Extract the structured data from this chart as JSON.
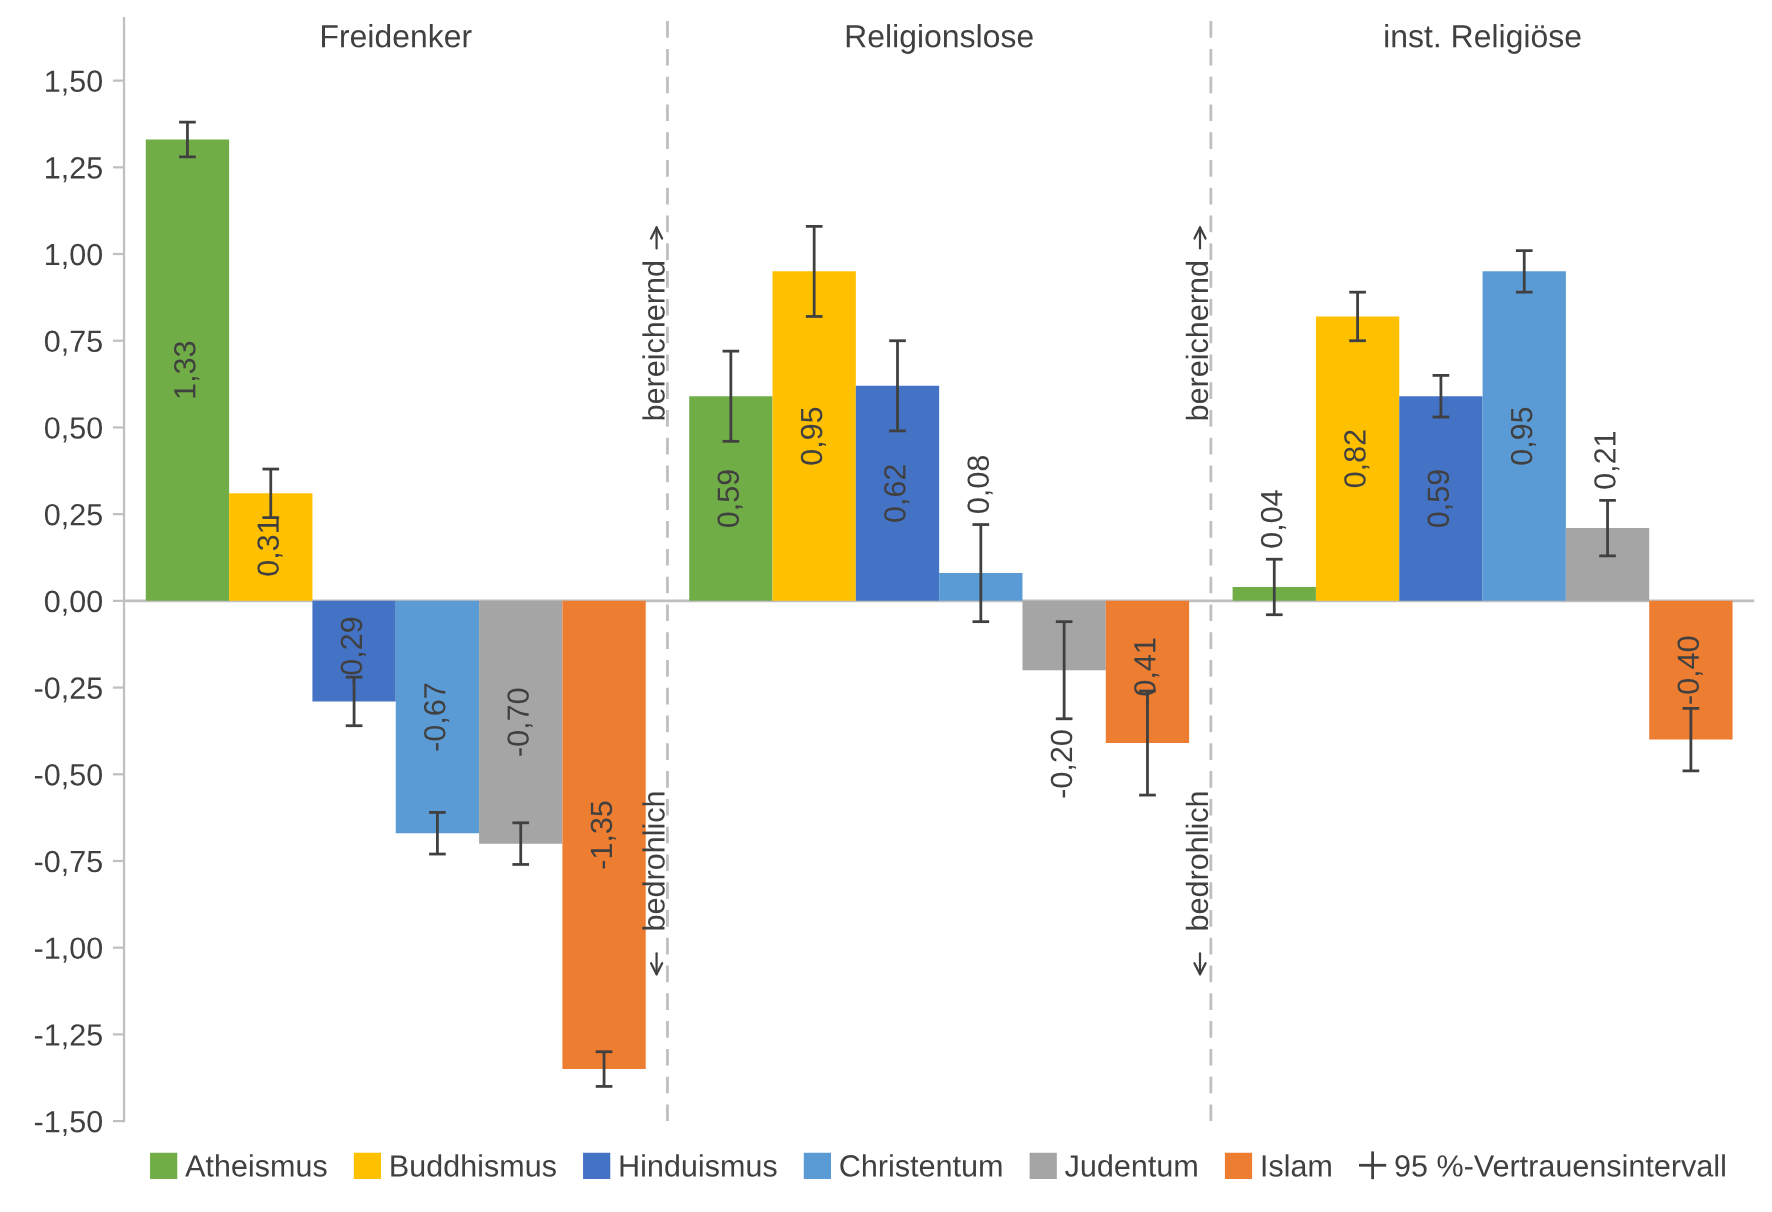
{
  "chart_data": {
    "type": "bar",
    "categories": [
      "Freidenker",
      "Religionslose",
      "inst. Religiöse"
    ],
    "series": [
      {
        "name": "Atheismus",
        "color": "#70ad47",
        "values": [
          1.33,
          0.59,
          0.04
        ],
        "value_labels": [
          "1,33",
          "0,59",
          "0,04"
        ],
        "errors": [
          0.05,
          0.13,
          0.08
        ]
      },
      {
        "name": "Buddhismus",
        "color": "#ffc000",
        "values": [
          0.31,
          0.95,
          0.82
        ],
        "value_labels": [
          "0,31",
          "0,95",
          "0,82"
        ],
        "errors": [
          0.07,
          0.13,
          0.07
        ]
      },
      {
        "name": "Hinduismus",
        "color": "#4472c4",
        "values": [
          -0.29,
          0.62,
          0.59
        ],
        "value_labels": [
          "-0,29",
          "0,62",
          "0,59"
        ],
        "errors": [
          0.07,
          0.13,
          0.06
        ]
      },
      {
        "name": "Christentum",
        "color": "#5b9bd5",
        "values": [
          -0.67,
          0.08,
          0.95
        ],
        "value_labels": [
          "-0,67",
          "0,08",
          "0,95"
        ],
        "errors": [
          0.06,
          0.14,
          0.06
        ]
      },
      {
        "name": "Judentum",
        "color": "#a5a5a5",
        "values": [
          -0.7,
          -0.2,
          0.21
        ],
        "value_labels": [
          "-0,70",
          "-0,20",
          "0,21"
        ],
        "errors": [
          0.06,
          0.14,
          0.08
        ]
      },
      {
        "name": "Islam",
        "color": "#ed7d31",
        "values": [
          -1.35,
          -0.41,
          -0.4
        ],
        "value_labels": [
          "-1,35",
          "-0,41",
          "-0,40"
        ],
        "errors": [
          0.05,
          0.15,
          0.09
        ]
      }
    ],
    "ylim": [
      -1.5,
      1.68
    ],
    "yticks": [
      {
        "value": -1.5,
        "label": "-1,50"
      },
      {
        "value": -1.25,
        "label": "-1,25"
      },
      {
        "value": -1.0,
        "label": "-1,00"
      },
      {
        "value": -0.75,
        "label": "-0,75"
      },
      {
        "value": -0.5,
        "label": "-0,50"
      },
      {
        "value": -0.25,
        "label": "-0,25"
      },
      {
        "value": 0,
        "label": "0,00"
      },
      {
        "value": 0.25,
        "label": "0,25"
      },
      {
        "value": 0.5,
        "label": "0,50"
      },
      {
        "value": 0.75,
        "label": "0,75"
      },
      {
        "value": 1.0,
        "label": "1,00"
      },
      {
        "value": 1.25,
        "label": "1,25"
      },
      {
        "value": 1.5,
        "label": "1,50"
      }
    ],
    "annotations": [
      "bereichernd",
      "bedrohlich",
      "bereichernd",
      "bedrohlich",
      "95 %-Vertrauensintervall"
    ],
    "grid": false,
    "legend": "bottom"
  }
}
